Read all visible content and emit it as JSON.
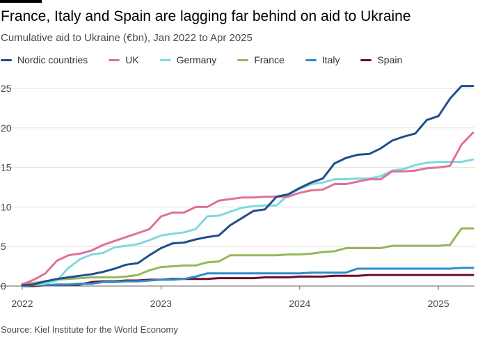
{
  "title": "France, Italy and Spain are lagging far behind on aid to Ukraine",
  "subtitle": "Cumulative aid to Ukraine (€bn), Jan 2022 to Apr 2025",
  "source": "Source: Kiel Institute for the World Economy",
  "chart_data": {
    "type": "line",
    "title": "France, Italy and Spain are lagging far behind on aid to Ukraine",
    "subtitle": "Cumulative aid to Ukraine (€bn), Jan 2022 to Apr 2025",
    "xlabel": "",
    "ylabel": "",
    "x": [
      "2022-01",
      "2022-02",
      "2022-03",
      "2022-04",
      "2022-05",
      "2022-06",
      "2022-07",
      "2022-08",
      "2022-09",
      "2022-10",
      "2022-11",
      "2022-12",
      "2023-01",
      "2023-02",
      "2023-03",
      "2023-04",
      "2023-05",
      "2023-06",
      "2023-07",
      "2023-08",
      "2023-09",
      "2023-10",
      "2023-11",
      "2023-12",
      "2024-01",
      "2024-02",
      "2024-03",
      "2024-04",
      "2024-05",
      "2024-06",
      "2024-07",
      "2024-08",
      "2024-09",
      "2024-10",
      "2024-11",
      "2024-12",
      "2025-01",
      "2025-02",
      "2025-03",
      "2025-04"
    ],
    "x_ticks": [
      {
        "value": "2022-01",
        "label": "2022"
      },
      {
        "value": "2023-01",
        "label": "2023"
      },
      {
        "value": "2024-01",
        "label": "2024"
      },
      {
        "value": "2025-01",
        "label": "2025"
      }
    ],
    "ylim": [
      0,
      25
    ],
    "y_ticks": [
      0,
      5,
      10,
      15,
      20,
      25
    ],
    "grid": true,
    "legend_position": "top-left",
    "series": [
      {
        "name": "Nordic countries",
        "color": "#1f4e8c",
        "values": [
          0.1,
          0.2,
          0.6,
          0.9,
          1.1,
          1.3,
          1.5,
          1.8,
          2.2,
          2.7,
          2.9,
          3.9,
          4.8,
          5.4,
          5.5,
          5.9,
          6.2,
          6.4,
          7.7,
          8.6,
          9.5,
          9.7,
          11.3,
          11.6,
          12.4,
          13.1,
          13.6,
          15.5,
          16.2,
          16.6,
          16.7,
          17.4,
          18.4,
          18.9,
          19.3,
          21.0,
          21.5,
          23.7,
          25.3,
          25.3
        ]
      },
      {
        "name": "UK",
        "color": "#e0709b",
        "values": [
          0.2,
          0.8,
          1.6,
          3.2,
          3.9,
          4.1,
          4.5,
          5.2,
          5.7,
          6.2,
          6.7,
          7.2,
          8.8,
          9.3,
          9.3,
          10.0,
          10.0,
          10.8,
          11.0,
          11.2,
          11.2,
          11.3,
          11.3,
          11.3,
          11.8,
          12.1,
          12.2,
          12.9,
          12.9,
          13.2,
          13.5,
          13.5,
          14.5,
          14.5,
          14.6,
          14.9,
          15.0,
          15.2,
          17.9,
          19.4
        ]
      },
      {
        "name": "Germany",
        "color": "#7fd8e0",
        "values": [
          0.1,
          0.1,
          0.3,
          0.7,
          2.3,
          3.4,
          4.0,
          4.2,
          4.9,
          5.1,
          5.3,
          5.8,
          6.4,
          6.6,
          6.8,
          7.2,
          8.8,
          8.9,
          9.4,
          9.9,
          10.1,
          10.2,
          10.2,
          11.5,
          12.3,
          12.9,
          13.1,
          13.5,
          13.5,
          13.6,
          13.6,
          13.9,
          14.6,
          14.8,
          15.3,
          15.6,
          15.7,
          15.7,
          15.7,
          16.0
        ]
      },
      {
        "name": "France",
        "color": "#96b85b",
        "values": [
          0.3,
          0.4,
          0.6,
          0.8,
          0.9,
          1.0,
          1.1,
          1.1,
          1.1,
          1.2,
          1.4,
          2.0,
          2.4,
          2.5,
          2.6,
          2.6,
          3.0,
          3.1,
          3.9,
          3.9,
          3.9,
          3.9,
          3.9,
          4.0,
          4.0,
          4.1,
          4.3,
          4.4,
          4.8,
          4.8,
          4.8,
          4.8,
          5.1,
          5.1,
          5.1,
          5.1,
          5.1,
          5.2,
          7.3,
          7.3
        ]
      },
      {
        "name": "Italy",
        "color": "#2f8ccc",
        "values": [
          0.0,
          0.1,
          0.1,
          0.2,
          0.2,
          0.3,
          0.3,
          0.5,
          0.5,
          0.6,
          0.6,
          0.7,
          0.8,
          0.8,
          0.9,
          1.2,
          1.6,
          1.6,
          1.6,
          1.6,
          1.6,
          1.6,
          1.6,
          1.6,
          1.6,
          1.7,
          1.7,
          1.7,
          1.7,
          2.2,
          2.2,
          2.2,
          2.2,
          2.2,
          2.2,
          2.2,
          2.2,
          2.2,
          2.3,
          2.3
        ]
      },
      {
        "name": "Spain",
        "color": "#6b0e2a",
        "values": [
          0.0,
          0.0,
          0.1,
          0.1,
          0.1,
          0.2,
          0.5,
          0.6,
          0.6,
          0.7,
          0.7,
          0.8,
          0.8,
          0.9,
          0.9,
          0.9,
          0.9,
          1.0,
          1.0,
          1.0,
          1.0,
          1.1,
          1.1,
          1.1,
          1.2,
          1.2,
          1.2,
          1.3,
          1.3,
          1.3,
          1.4,
          1.4,
          1.4,
          1.4,
          1.4,
          1.4,
          1.4,
          1.4,
          1.4,
          1.4
        ]
      }
    ]
  }
}
